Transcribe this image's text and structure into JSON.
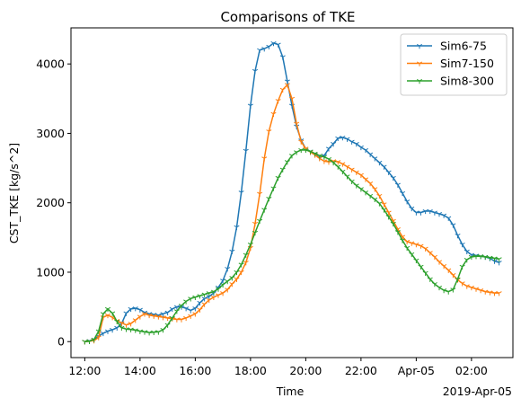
{
  "chart_data": {
    "type": "line",
    "title": "Comparisons of TKE",
    "xlabel": "Time",
    "ylabel": "CST_TKE [kg/s^2]",
    "x_offset_label": "2019-Apr-05",
    "xlim": [
      "2019-04-04T11:30",
      "2019-04-05T03:30"
    ],
    "ylim": [
      -230,
      4520
    ],
    "x_ticks": [
      {
        "t": "2019-04-04T12:00",
        "label": "12:00"
      },
      {
        "t": "2019-04-04T14:00",
        "label": "14:00"
      },
      {
        "t": "2019-04-04T16:00",
        "label": "16:00"
      },
      {
        "t": "2019-04-04T18:00",
        "label": "18:00"
      },
      {
        "t": "2019-04-04T20:00",
        "label": "20:00"
      },
      {
        "t": "2019-04-04T22:00",
        "label": "22:00"
      },
      {
        "t": "2019-04-05T00:00",
        "label": "Apr-05"
      },
      {
        "t": "2019-04-05T02:00",
        "label": "02:00"
      }
    ],
    "y_ticks": [
      0,
      1000,
      2000,
      3000,
      4000
    ],
    "grid": false,
    "legend_position": "top-right",
    "x": [
      "2019-04-04T12:00",
      "2019-04-04T12:10",
      "2019-04-04T12:20",
      "2019-04-04T12:30",
      "2019-04-04T12:40",
      "2019-04-04T12:50",
      "2019-04-04T13:00",
      "2019-04-04T13:10",
      "2019-04-04T13:20",
      "2019-04-04T13:30",
      "2019-04-04T13:40",
      "2019-04-04T13:50",
      "2019-04-04T14:00",
      "2019-04-04T14:10",
      "2019-04-04T14:20",
      "2019-04-04T14:30",
      "2019-04-04T14:40",
      "2019-04-04T14:50",
      "2019-04-04T15:00",
      "2019-04-04T15:10",
      "2019-04-04T15:20",
      "2019-04-04T15:30",
      "2019-04-04T15:40",
      "2019-04-04T15:50",
      "2019-04-04T16:00",
      "2019-04-04T16:10",
      "2019-04-04T16:20",
      "2019-04-04T16:30",
      "2019-04-04T16:40",
      "2019-04-04T16:50",
      "2019-04-04T17:00",
      "2019-04-04T17:10",
      "2019-04-04T17:20",
      "2019-04-04T17:30",
      "2019-04-04T17:40",
      "2019-04-04T17:50",
      "2019-04-04T18:00",
      "2019-04-04T18:10",
      "2019-04-04T18:20",
      "2019-04-04T18:30",
      "2019-04-04T18:40",
      "2019-04-04T18:50",
      "2019-04-04T19:00",
      "2019-04-04T19:10",
      "2019-04-04T19:20",
      "2019-04-04T19:30",
      "2019-04-04T19:40",
      "2019-04-04T19:50",
      "2019-04-04T20:00",
      "2019-04-04T20:10",
      "2019-04-04T20:20",
      "2019-04-04T20:30",
      "2019-04-04T20:40",
      "2019-04-04T20:50",
      "2019-04-04T21:00",
      "2019-04-04T21:10",
      "2019-04-04T21:20",
      "2019-04-04T21:30",
      "2019-04-04T21:40",
      "2019-04-04T21:50",
      "2019-04-04T22:00",
      "2019-04-04T22:10",
      "2019-04-04T22:20",
      "2019-04-04T22:30",
      "2019-04-04T22:40",
      "2019-04-04T22:50",
      "2019-04-04T23:00",
      "2019-04-04T23:10",
      "2019-04-04T23:20",
      "2019-04-04T23:30",
      "2019-04-04T23:40",
      "2019-04-04T23:50",
      "2019-04-05T00:00",
      "2019-04-05T00:10",
      "2019-04-05T00:20",
      "2019-04-05T00:30",
      "2019-04-05T00:40",
      "2019-04-05T00:50",
      "2019-04-05T01:00",
      "2019-04-05T01:10",
      "2019-04-05T01:20",
      "2019-04-05T01:30",
      "2019-04-05T01:40",
      "2019-04-05T01:50",
      "2019-04-05T02:00",
      "2019-04-05T02:10",
      "2019-04-05T02:20",
      "2019-04-05T02:30",
      "2019-04-05T02:40",
      "2019-04-05T02:50",
      "2019-04-05T03:00"
    ],
    "series": [
      {
        "name": "Sim6-75",
        "color": "#1f77b4",
        "values": [
          0,
          10,
          30,
          80,
          120,
          150,
          170,
          200,
          260,
          410,
          470,
          480,
          460,
          420,
          400,
          390,
          380,
          400,
          420,
          470,
          500,
          500,
          480,
          450,
          480,
          560,
          620,
          650,
          700,
          780,
          880,
          1050,
          1300,
          1650,
          2150,
          2750,
          3400,
          3900,
          4200,
          4220,
          4250,
          4300,
          4280,
          4100,
          3750,
          3400,
          3100,
          2900,
          2780,
          2740,
          2700,
          2650,
          2680,
          2780,
          2850,
          2930,
          2940,
          2920,
          2880,
          2850,
          2800,
          2760,
          2700,
          2640,
          2580,
          2520,
          2440,
          2360,
          2260,
          2140,
          2020,
          1920,
          1860,
          1860,
          1880,
          1880,
          1860,
          1840,
          1820,
          1780,
          1680,
          1530,
          1400,
          1300,
          1250,
          1240,
          1230,
          1220,
          1200,
          1160,
          1140
        ]
      },
      {
        "name": "Sim7-150",
        "color": "#ff7f0e",
        "values": [
          0,
          5,
          15,
          60,
          350,
          380,
          350,
          300,
          270,
          240,
          260,
          310,
          360,
          400,
          380,
          370,
          360,
          350,
          340,
          330,
          320,
          320,
          340,
          370,
          400,
          460,
          540,
          600,
          640,
          670,
          700,
          750,
          830,
          900,
          1000,
          1140,
          1350,
          1700,
          2130,
          2640,
          3030,
          3280,
          3470,
          3630,
          3700,
          3500,
          3140,
          2880,
          2780,
          2730,
          2690,
          2640,
          2600,
          2590,
          2600,
          2590,
          2560,
          2520,
          2480,
          2440,
          2400,
          2340,
          2280,
          2200,
          2100,
          1980,
          1860,
          1740,
          1620,
          1510,
          1440,
          1420,
          1400,
          1380,
          1340,
          1280,
          1220,
          1150,
          1090,
          1030,
          960,
          890,
          840,
          800,
          780,
          760,
          740,
          720,
          710,
          700,
          700
        ]
      },
      {
        "name": "Sim8-300",
        "color": "#2ca02c",
        "values": [
          0,
          5,
          30,
          150,
          400,
          470,
          410,
          290,
          200,
          180,
          175,
          165,
          150,
          140,
          130,
          135,
          140,
          170,
          240,
          340,
          440,
          520,
          580,
          620,
          640,
          660,
          680,
          700,
          720,
          760,
          820,
          870,
          920,
          1000,
          1110,
          1250,
          1400,
          1570,
          1740,
          1900,
          2060,
          2210,
          2360,
          2480,
          2590,
          2680,
          2730,
          2760,
          2760,
          2740,
          2710,
          2680,
          2660,
          2630,
          2580,
          2520,
          2450,
          2380,
          2310,
          2250,
          2200,
          2150,
          2100,
          2050,
          1990,
          1900,
          1800,
          1700,
          1580,
          1460,
          1350,
          1260,
          1170,
          1080,
          990,
          900,
          830,
          780,
          740,
          720,
          750,
          900,
          1080,
          1180,
          1220,
          1230,
          1230,
          1220,
          1210,
          1200,
          1190
        ]
      }
    ]
  }
}
